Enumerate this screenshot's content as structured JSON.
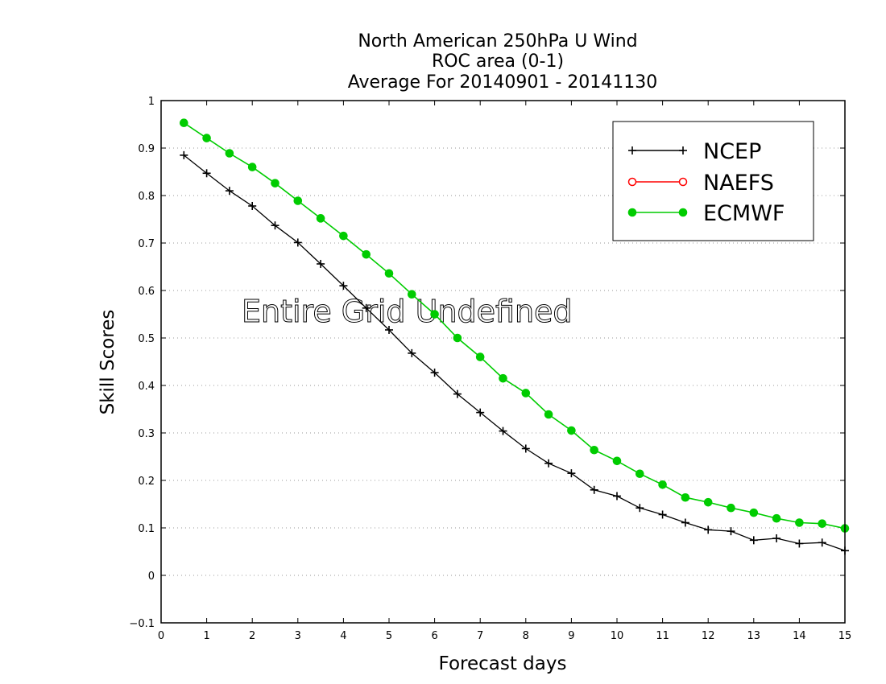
{
  "chart_data": {
    "type": "line",
    "title_lines": [
      "North American 250hPa U Wind",
      "ROC area (0-1)",
      "Average For 20140901 - 20141130"
    ],
    "xlabel": "Forecast days",
    "ylabel": "Skill Scores",
    "xlim": [
      0,
      15
    ],
    "ylim": [
      -0.1,
      1
    ],
    "xticks": [
      0,
      1,
      2,
      3,
      4,
      5,
      6,
      7,
      8,
      9,
      10,
      11,
      12,
      13,
      14,
      15
    ],
    "yticks": [
      -0.1,
      0,
      0.1,
      0.2,
      0.3,
      0.4,
      0.5,
      0.6,
      0.7,
      0.8,
      0.9,
      1
    ],
    "ytick_labels": [
      "−0.1",
      "0",
      "0.1",
      "0.2",
      "0.3",
      "0.4",
      "0.5",
      "0.6",
      "0.7",
      "0.8",
      "0.9",
      "1"
    ],
    "grid": "horizontal dotted",
    "legend_position": "top-right",
    "overlay_text": "Entire Grid Undefined",
    "series": [
      {
        "name": "NCEP",
        "color": "#000000",
        "marker": "plus",
        "x": [
          0.5,
          1,
          1.5,
          2,
          2.5,
          3,
          3.5,
          4,
          4.5,
          5,
          5.5,
          6,
          6.5,
          7,
          7.5,
          8,
          8.5,
          9,
          9.5,
          10,
          10.5,
          11,
          11.5,
          12,
          12.5,
          13,
          13.5,
          14,
          14.5,
          15
        ],
        "y": [
          0.885,
          0.847,
          0.81,
          0.778,
          0.737,
          0.701,
          0.656,
          0.61,
          0.563,
          0.517,
          0.468,
          0.427,
          0.382,
          0.343,
          0.304,
          0.267,
          0.236,
          0.215,
          0.18,
          0.167,
          0.142,
          0.128,
          0.111,
          0.096,
          0.093,
          0.074,
          0.078,
          0.067,
          0.069,
          0.052
        ]
      },
      {
        "name": "NAEFS",
        "color": "#ff0000",
        "marker": "open-circle",
        "x": [],
        "y": []
      },
      {
        "name": "ECMWF",
        "color": "#00cc00",
        "marker": "filled-circle",
        "x": [
          0.5,
          1,
          1.5,
          2,
          2.5,
          3,
          3.5,
          4,
          4.5,
          5,
          5.5,
          6,
          6.5,
          7,
          7.5,
          8,
          8.5,
          9,
          9.5,
          10,
          10.5,
          11,
          11.5,
          12,
          12.5,
          13,
          13.5,
          14,
          14.5,
          15
        ],
        "y": [
          0.953,
          0.921,
          0.889,
          0.86,
          0.826,
          0.789,
          0.752,
          0.715,
          0.676,
          0.636,
          0.592,
          0.55,
          0.5,
          0.46,
          0.415,
          0.384,
          0.339,
          0.305,
          0.264,
          0.241,
          0.214,
          0.191,
          0.164,
          0.154,
          0.142,
          0.132,
          0.12,
          0.111,
          0.109,
          0.099
        ]
      }
    ]
  }
}
